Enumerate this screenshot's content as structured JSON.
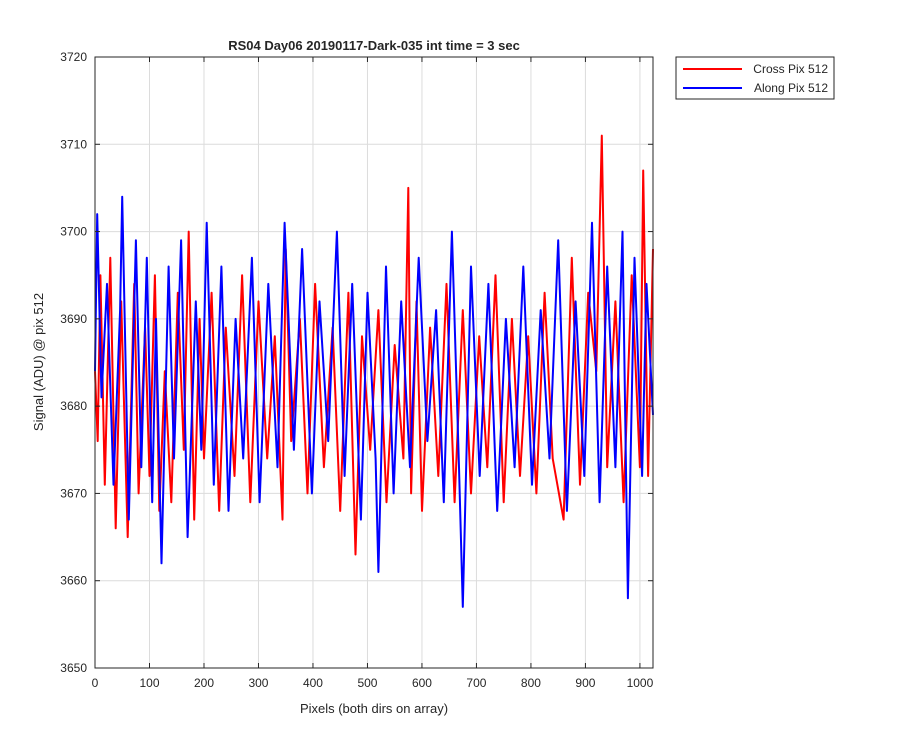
{
  "chart_data": {
    "type": "line",
    "title": "RS04 Day06 20190117-Dark-035 int time = 3 sec",
    "xlabel": "Pixels (both dirs on array)",
    "ylabel": "Signal (ADU) @ pix 512",
    "xlim": [
      0,
      1024
    ],
    "ylim": [
      3650,
      3720
    ],
    "xticks": [
      0,
      100,
      200,
      300,
      400,
      500,
      600,
      700,
      800,
      900,
      1000
    ],
    "yticks": [
      3650,
      3660,
      3670,
      3680,
      3690,
      3700,
      3710,
      3720
    ],
    "grid": true,
    "legend_position": "outside-top-right",
    "series": [
      {
        "name": "Cross Pix 512",
        "color": "#ff0000",
        "x": [
          0,
          5,
          10,
          18,
          28,
          38,
          48,
          60,
          72,
          80,
          92,
          100,
          110,
          118,
          128,
          140,
          152,
          163,
          172,
          182,
          192,
          200,
          214,
          228,
          240,
          256,
          270,
          285,
          300,
          316,
          330,
          344,
          350,
          360,
          376,
          390,
          404,
          420,
          436,
          450,
          465,
          478,
          490,
          505,
          520,
          535,
          550,
          566,
          575,
          580,
          590,
          600,
          615,
          630,
          645,
          660,
          675,
          690,
          705,
          720,
          735,
          750,
          765,
          780,
          795,
          810,
          825,
          840,
          860,
          875,
          890,
          905,
          920,
          930,
          940,
          955,
          970,
          985,
          1000,
          1006,
          1015,
          1024
        ],
        "y": [
          3684,
          3676,
          3695,
          3671,
          3697,
          3666,
          3692,
          3665,
          3694,
          3670,
          3689,
          3672,
          3695,
          3668,
          3684,
          3669,
          3693,
          3675,
          3700,
          3667,
          3690,
          3674,
          3693,
          3668,
          3689,
          3672,
          3695,
          3669,
          3692,
          3674,
          3688,
          3667,
          3698,
          3676,
          3690,
          3670,
          3694,
          3673,
          3689,
          3668,
          3693,
          3663,
          3688,
          3675,
          3691,
          3669,
          3687,
          3674,
          3705,
          3670,
          3692,
          3668,
          3689,
          3672,
          3694,
          3669,
          3691,
          3670,
          3688,
          3673,
          3695,
          3669,
          3690,
          3672,
          3688,
          3670,
          3693,
          3674,
          3667,
          3697,
          3671,
          3693,
          3684,
          3711,
          3673,
          3692,
          3669,
          3695,
          3673,
          3707,
          3672,
          3698
        ]
      },
      {
        "name": "Along Pix 512",
        "color": "#0000ff",
        "x": [
          0,
          4,
          12,
          22,
          34,
          46,
          50,
          62,
          75,
          85,
          95,
          105,
          112,
          122,
          135,
          145,
          158,
          170,
          185,
          195,
          205,
          218,
          232,
          245,
          258,
          272,
          288,
          302,
          318,
          335,
          348,
          365,
          380,
          398,
          412,
          428,
          444,
          458,
          472,
          488,
          500,
          515,
          520,
          534,
          548,
          562,
          578,
          594,
          610,
          626,
          640,
          655,
          668,
          675,
          690,
          706,
          722,
          738,
          754,
          770,
          786,
          802,
          818,
          834,
          850,
          866,
          882,
          898,
          912,
          926,
          940,
          955,
          968,
          978,
          990,
          1004,
          1012,
          1024
        ],
        "y": [
          3684,
          3702,
          3681,
          3694,
          3671,
          3691,
          3704,
          3667,
          3699,
          3673,
          3697,
          3669,
          3690,
          3662,
          3696,
          3674,
          3699,
          3665,
          3692,
          3675,
          3701,
          3671,
          3696,
          3668,
          3690,
          3674,
          3697,
          3669,
          3694,
          3673,
          3701,
          3675,
          3698,
          3670,
          3692,
          3676,
          3700,
          3672,
          3694,
          3667,
          3693,
          3674,
          3661,
          3696,
          3670,
          3692,
          3673,
          3697,
          3676,
          3691,
          3669,
          3700,
          3673,
          3657,
          3696,
          3672,
          3694,
          3668,
          3690,
          3673,
          3696,
          3671,
          3691,
          3674,
          3699,
          3668,
          3692,
          3672,
          3701,
          3669,
          3696,
          3673,
          3700,
          3658,
          3697,
          3672,
          3694,
          3679
        ]
      }
    ]
  }
}
